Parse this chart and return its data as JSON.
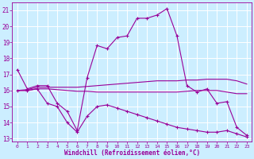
{
  "xlabel": "Windchill (Refroidissement éolien,°C)",
  "background_color": "#cceeff",
  "grid_color": "#ffffff",
  "line_color": "#990099",
  "xlim": [
    -0.5,
    23.5
  ],
  "ylim": [
    12.8,
    21.5
  ],
  "yticks": [
    13,
    14,
    15,
    16,
    17,
    18,
    19,
    20,
    21
  ],
  "xticks": [
    0,
    1,
    2,
    3,
    4,
    5,
    6,
    7,
    8,
    9,
    10,
    11,
    12,
    13,
    14,
    15,
    16,
    17,
    18,
    19,
    20,
    21,
    22,
    23
  ],
  "line1_x": [
    0,
    1,
    2,
    3,
    4,
    5,
    6,
    7,
    8,
    9,
    10,
    11,
    12,
    13,
    14,
    15,
    16,
    17,
    18,
    19,
    20,
    21,
    22,
    23
  ],
  "line1_y": [
    17.3,
    16.1,
    16.3,
    16.3,
    15.2,
    14.7,
    13.5,
    16.8,
    18.8,
    18.6,
    19.3,
    19.4,
    20.5,
    20.5,
    20.7,
    21.1,
    19.4,
    16.3,
    15.9,
    16.1,
    15.2,
    15.3,
    13.7,
    13.2
  ],
  "line2_x": [
    0,
    1,
    2,
    3,
    4,
    5,
    6,
    7,
    8,
    9,
    10,
    11,
    12,
    13,
    14,
    15,
    16,
    17,
    18,
    19,
    20,
    21,
    22,
    23
  ],
  "line2_y": [
    16.0,
    16.05,
    16.2,
    16.2,
    16.2,
    16.2,
    16.2,
    16.25,
    16.3,
    16.35,
    16.4,
    16.45,
    16.5,
    16.55,
    16.6,
    16.6,
    16.6,
    16.65,
    16.65,
    16.7,
    16.7,
    16.7,
    16.6,
    16.4
  ],
  "line3_x": [
    0,
    1,
    2,
    3,
    4,
    5,
    6,
    7,
    8,
    9,
    10,
    11,
    12,
    13,
    14,
    15,
    16,
    17,
    18,
    19,
    20,
    21,
    22,
    23
  ],
  "line3_y": [
    16.0,
    16.0,
    16.1,
    16.1,
    16.05,
    16.0,
    15.95,
    15.95,
    15.9,
    15.9,
    15.9,
    15.9,
    15.9,
    15.9,
    15.9,
    15.9,
    15.9,
    15.95,
    16.0,
    16.0,
    16.0,
    15.9,
    15.8,
    15.8
  ],
  "line4_x": [
    0,
    1,
    2,
    3,
    4,
    5,
    6,
    7,
    8,
    9,
    10,
    11,
    12,
    13,
    14,
    15,
    16,
    17,
    18,
    19,
    20,
    21,
    22,
    23
  ],
  "line4_y": [
    16.0,
    16.0,
    16.1,
    15.2,
    15.0,
    14.0,
    13.4,
    14.4,
    15.0,
    15.1,
    14.9,
    14.7,
    14.5,
    14.3,
    14.1,
    13.9,
    13.7,
    13.6,
    13.5,
    13.4,
    13.4,
    13.5,
    13.3,
    13.1
  ]
}
